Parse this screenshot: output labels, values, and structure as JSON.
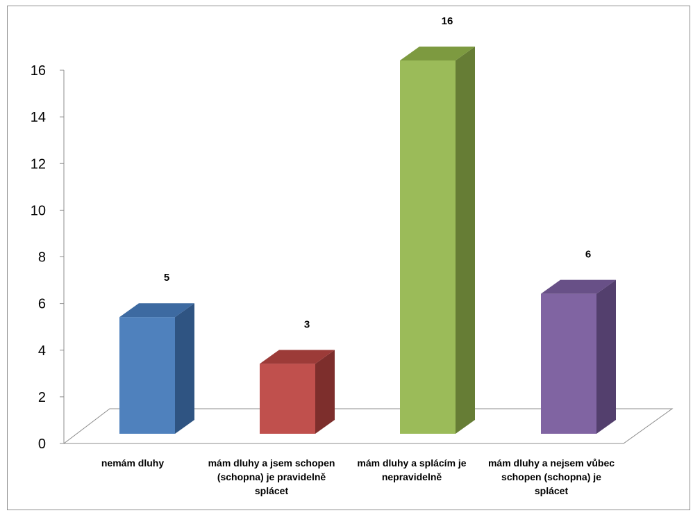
{
  "chart_data": {
    "type": "bar",
    "categories": [
      "nemám dluhy",
      "mám dluhy a jsem schopen (schopna) je pravidelně splácet",
      "mám dluhy a splácím je nepravidelně",
      "mám dluhy a nejsem vůbec schopen (schopna) je splácet"
    ],
    "values": [
      5,
      3,
      16,
      6
    ],
    "data_labels": [
      "5",
      "3",
      "16",
      "6"
    ],
    "ylim": [
      0,
      16
    ],
    "yticks": [
      "0",
      "2",
      "4",
      "6",
      "8",
      "10",
      "12",
      "14",
      "16"
    ],
    "title": "",
    "xlabel": "",
    "ylabel": "",
    "grid": false,
    "legend": "none",
    "style": "3d-column",
    "colors": [
      {
        "front": "#4f81bd",
        "side": "#2f5482",
        "top": "#3d6aa1"
      },
      {
        "front": "#c0504d",
        "side": "#7d2e2c",
        "top": "#9c3b38"
      },
      {
        "front": "#9bbb59",
        "side": "#667d35",
        "top": "#7d9a40"
      },
      {
        "front": "#8064a2",
        "side": "#533f6d",
        "top": "#685087"
      }
    ]
  }
}
